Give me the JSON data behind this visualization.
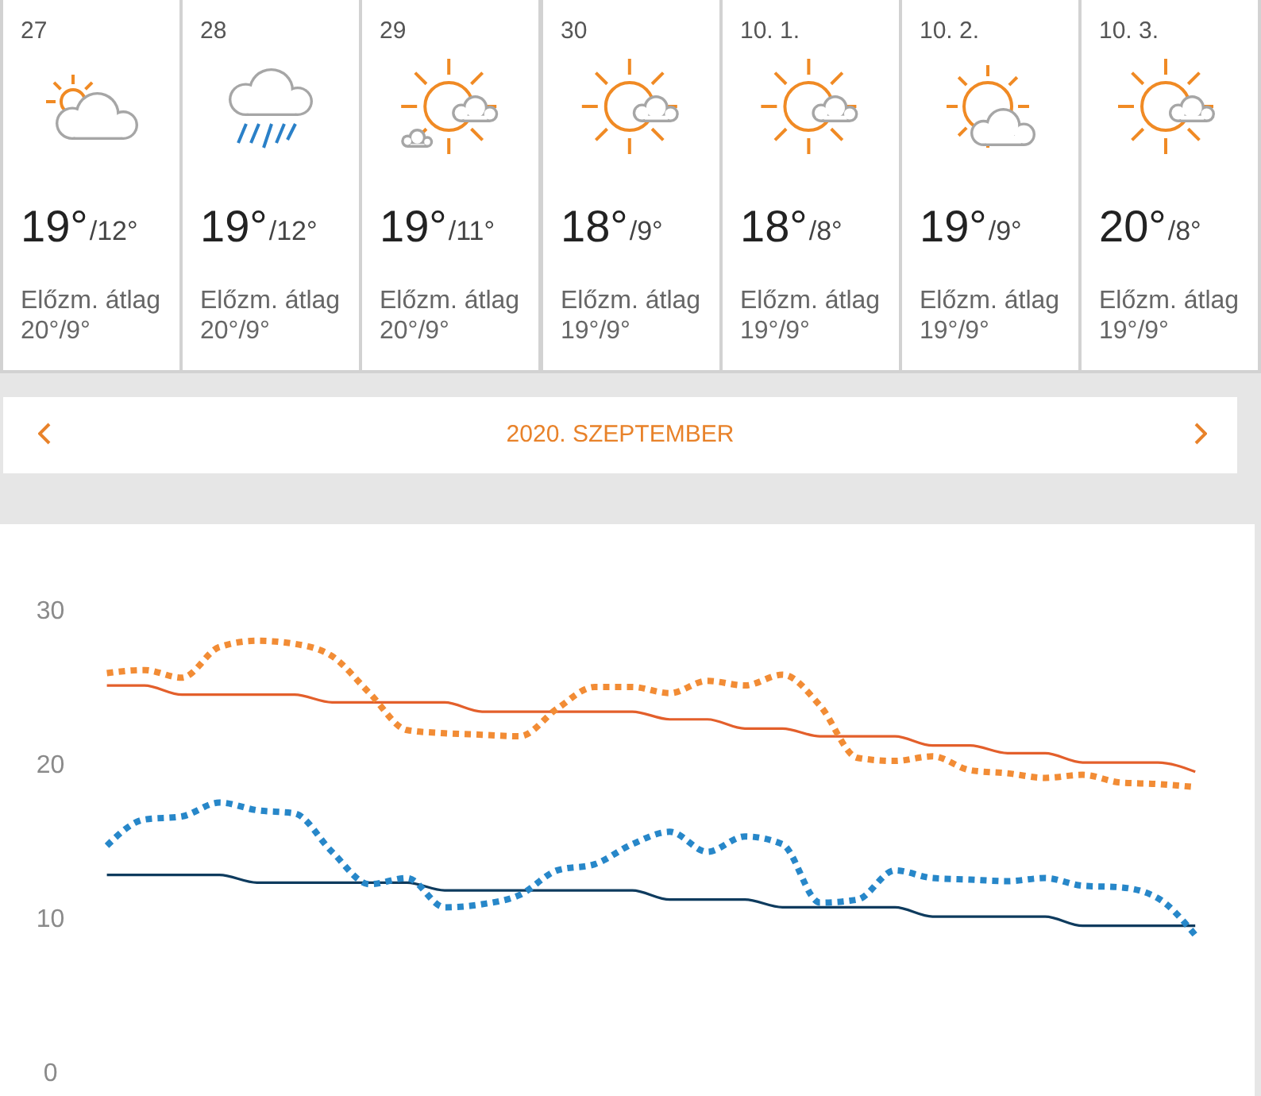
{
  "chart_data": [
    {
      "type": "other",
      "title": "27",
      "annotations": [
        "19°",
        "/12°",
        "Előzm. átlag",
        "20°/9°"
      ]
    },
    {
      "type": "other",
      "title": "28",
      "annotations": [
        "19°",
        "/12°",
        "Előzm. átlag",
        "20°/9°"
      ]
    },
    {
      "type": "other",
      "title": "29",
      "annotations": [
        "19°",
        "/11°",
        "Előzm. átlag",
        "20°/9°"
      ]
    },
    {
      "type": "other",
      "title": "30",
      "annotations": [
        "18°",
        "/9°",
        "Előzm. átlag",
        "19°/9°"
      ]
    },
    {
      "type": "other",
      "title": "10. 1.",
      "annotations": [
        "18°",
        "/8°",
        "Előzm. átlag",
        "19°/9°"
      ]
    },
    {
      "type": "other",
      "title": "10. 2.",
      "annotations": [
        "19°",
        "/9°",
        "Előzm. átlag",
        "19°/9°"
      ]
    },
    {
      "type": "other",
      "title": "10. 3.",
      "annotations": [
        "20°",
        "/8°",
        "Előzm. átlag",
        "19°/9°"
      ]
    },
    {
      "type": "line",
      "title": "2020. SZEPTEMBER",
      "categories": [
        null,
        null,
        null,
        null,
        null,
        null,
        null,
        null,
        null,
        null,
        null,
        null,
        null,
        null,
        null,
        null,
        null,
        null,
        null,
        null,
        null,
        null,
        null,
        null,
        null,
        null,
        null,
        null,
        null,
        null
      ],
      "ylim": [
        0,
        30
      ],
      "yticks": [
        0,
        10,
        20,
        30
      ],
      "tick_labels": "y",
      "series": [
        {
          "color": "#e35f2b",
          "line_style": "solid",
          "values": [
            25.1,
            25.1,
            24.5,
            24.5,
            24.5,
            24.5,
            24.0,
            24.0,
            24.0,
            24.0,
            23.4,
            23.4,
            23.4,
            23.4,
            23.4,
            22.9,
            22.9,
            22.3,
            22.3,
            21.8,
            21.8,
            21.8,
            21.2,
            21.2,
            20.7,
            20.7,
            20.1,
            20.1,
            20.1,
            19.5
          ]
        },
        {
          "color": "#0e3b5e",
          "line_style": "solid",
          "values": [
            12.8,
            12.8,
            12.8,
            12.8,
            12.3,
            12.3,
            12.3,
            12.3,
            12.3,
            11.8,
            11.8,
            11.8,
            11.8,
            11.8,
            11.8,
            11.2,
            11.2,
            11.2,
            10.7,
            10.7,
            10.7,
            10.7,
            10.1,
            10.1,
            10.1,
            10.1,
            9.5,
            9.5,
            9.5,
            9.5
          ]
        },
        {
          "color": "#f28c35",
          "line_style": "dotted",
          "values": [
            25.9,
            26.1,
            25.6,
            27.6,
            28.0,
            27.8,
            27.0,
            24.6,
            22.2,
            22.0,
            21.9,
            21.8,
            23.6,
            25.0,
            25.0,
            24.6,
            25.4,
            25.1,
            25.8,
            23.8,
            20.4,
            20.2,
            20.5,
            19.6,
            19.4,
            19.1,
            19.3,
            18.8,
            18.7,
            18.5
          ]
        },
        {
          "color": "#2787c9",
          "line_style": "dotted",
          "values": [
            14.7,
            16.4,
            16.6,
            17.5,
            17.0,
            16.8,
            14.3,
            12.2,
            12.6,
            10.7,
            10.9,
            11.5,
            13.1,
            13.5,
            14.8,
            15.6,
            14.3,
            15.3,
            14.8,
            11.0,
            11.2,
            13.1,
            12.6,
            12.5,
            12.4,
            12.6,
            12.1,
            12.0,
            11.3,
            8.9
          ]
        }
      ]
    }
  ]
}
